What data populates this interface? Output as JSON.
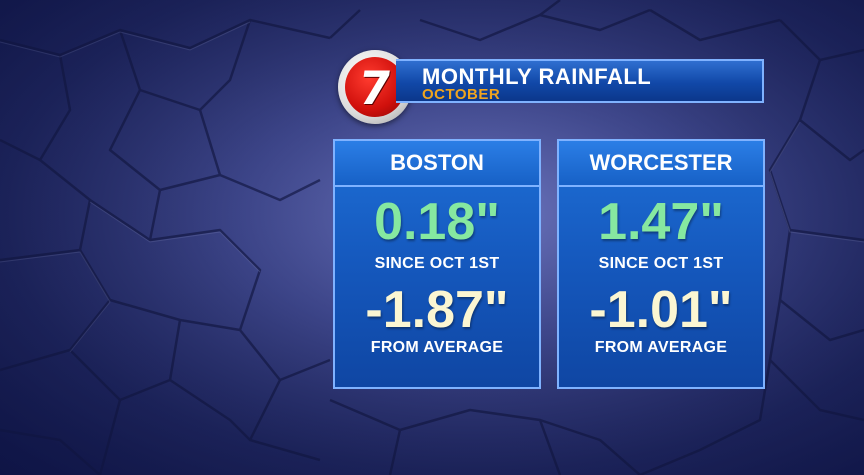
{
  "header": {
    "logo_text": "7",
    "title": "MONTHLY RAINFALL",
    "subtitle": "OCTOBER"
  },
  "panels": [
    {
      "city": "BOSTON",
      "since_value": "0.18\"",
      "since_label": "SINCE OCT 1ST",
      "diff_value": "-1.87\"",
      "diff_label": "FROM AVERAGE"
    },
    {
      "city": "WORCESTER",
      "since_value": "1.47\"",
      "since_label": "SINCE OCT 1ST",
      "diff_value": "-1.01\"",
      "diff_label": "FROM AVERAGE"
    }
  ],
  "colors": {
    "panel_blue": "#1558bd",
    "value_green": "#86e8a0",
    "value_cream": "#fbf6d2",
    "subtitle_orange": "#f0a41e",
    "logo_red": "#d0100c"
  }
}
